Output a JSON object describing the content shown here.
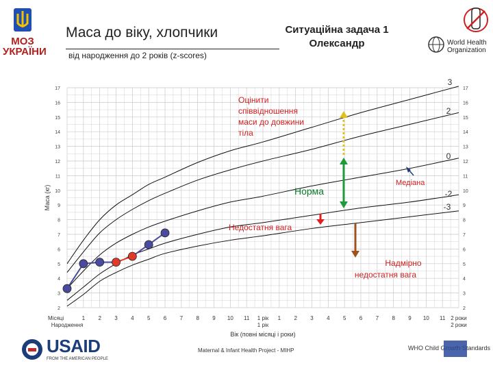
{
  "header": {
    "title": "Маса до віку, хлопчики",
    "subtitle": "від народження до 2 років (z-scores)",
    "task_line1": "Ситуаційна задача 1",
    "task_line2": "Олександр",
    "moz_line1": "МОЗ",
    "moz_line2": "УКРАЇНИ",
    "who_line1": "World Health",
    "who_line2": "Organization"
  },
  "footer": {
    "usaid": "USAID",
    "usaid_tagline": "FROM THE AMERICAN PEOPLE",
    "project": "Maternal & Infant Health Project - MIHP",
    "standards": "WHO Child Growth Standards"
  },
  "colors": {
    "grid": "#c9c9c9",
    "curve": "#111111",
    "point_blue": "#4a4a9e",
    "point_red": "#e03a2a",
    "arrow_green": "#1f9a3a",
    "arrow_yellow": "#e0c020",
    "arrow_red": "#e02020",
    "arrow_brown": "#a0521e",
    "text_red": "#d02020",
    "text_green": "#0a7a2a",
    "usaid_blue": "#1d3d7a"
  },
  "chart_data": {
    "type": "line",
    "title": "Маса до віку, хлопчики",
    "ylabel": "Маса (кг)",
    "xlabel": "Вік (повні місяці і роки)",
    "ylim": [
      2,
      17
    ],
    "xlim": [
      0,
      24
    ],
    "grid": true,
    "y_ticks": [
      2,
      3,
      4,
      5,
      6,
      7,
      8,
      9,
      10,
      11,
      12,
      13,
      14,
      15,
      16,
      17
    ],
    "x_tick_labels": [
      "Місяці",
      "1",
      "2",
      "3",
      "4",
      "5",
      "6",
      "7",
      "8",
      "9",
      "10",
      "11",
      "1 рік",
      "1",
      "2",
      "3",
      "4",
      "5",
      "6",
      "7",
      "8",
      "9",
      "10",
      "11",
      "2 роки"
    ],
    "x_year_labels": {
      "0": "Народження",
      "12": "1 рік",
      "24": "2 роки"
    },
    "curve_labels": [
      "3",
      "2",
      "0",
      "-2",
      "-3"
    ],
    "curves": [
      {
        "name": "3",
        "x": [
          0,
          1,
          2,
          3,
          4,
          5,
          6,
          8,
          10,
          12,
          15,
          18,
          21,
          24
        ],
        "y": [
          5.0,
          6.6,
          8.0,
          9.0,
          9.7,
          10.4,
          10.9,
          11.9,
          12.7,
          13.3,
          14.3,
          15.3,
          16.2,
          17.1
        ]
      },
      {
        "name": "2",
        "x": [
          0,
          1,
          2,
          3,
          4,
          5,
          6,
          8,
          10,
          12,
          15,
          18,
          21,
          24
        ],
        "y": [
          4.4,
          5.8,
          7.1,
          8.0,
          8.7,
          9.3,
          9.8,
          10.7,
          11.4,
          12.0,
          12.8,
          13.7,
          14.5,
          15.3
        ]
      },
      {
        "name": "0",
        "x": [
          0,
          1,
          2,
          3,
          4,
          5,
          6,
          8,
          10,
          12,
          15,
          18,
          21,
          24
        ],
        "y": [
          3.3,
          4.5,
          5.6,
          6.4,
          7.0,
          7.5,
          7.9,
          8.6,
          9.2,
          9.6,
          10.3,
          10.9,
          11.5,
          12.2
        ]
      },
      {
        "name": "-2",
        "x": [
          0,
          1,
          2,
          3,
          4,
          5,
          6,
          8,
          10,
          12,
          15,
          18,
          21,
          24
        ],
        "y": [
          2.5,
          3.4,
          4.3,
          5.0,
          5.6,
          6.0,
          6.4,
          7.0,
          7.5,
          7.8,
          8.3,
          8.8,
          9.2,
          9.7
        ]
      },
      {
        "name": "-3",
        "x": [
          0,
          1,
          2,
          3,
          4,
          5,
          6,
          8,
          10,
          12,
          15,
          18,
          21,
          24
        ],
        "y": [
          2.1,
          2.9,
          3.8,
          4.4,
          4.9,
          5.3,
          5.7,
          6.2,
          6.6,
          6.9,
          7.4,
          7.8,
          8.2,
          8.6
        ]
      }
    ],
    "patient": {
      "x": [
        0,
        1,
        2,
        3,
        4,
        5,
        6
      ],
      "y": [
        3.3,
        5.0,
        5.1,
        5.1,
        5.5,
        6.3,
        7.1
      ],
      "colors": [
        "blue",
        "blue",
        "blue",
        "red",
        "red",
        "blue",
        "blue"
      ]
    },
    "annotations": {
      "assess": "Оцінити співвідношення маси до довжини тіла",
      "norm": "Норма",
      "median": "Медіана",
      "insufficient": "Недостатня вага",
      "severe": "Надмірно недостатня вага"
    }
  }
}
